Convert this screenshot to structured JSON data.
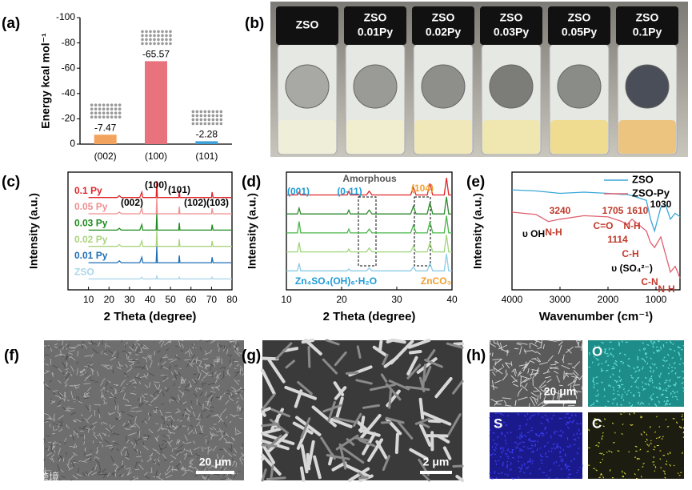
{
  "chart_data": [
    {
      "type": "bar",
      "ylabel": "Energy kcal mol⁻¹",
      "categories": [
        "(002)",
        "(100)",
        "(101)"
      ],
      "values": [
        -7.47,
        -65.57,
        -2.28
      ],
      "colors": [
        "#f2a45f",
        "#e9737d",
        "#3f9fd8"
      ],
      "ylim": [
        0,
        -100
      ],
      "yticks": [
        0,
        -20,
        -40,
        -60,
        -80,
        -100
      ]
    },
    {
      "type": "line",
      "xlabel": "2 Theta (degree)",
      "ylabel": "Intensity (a.u.)",
      "x": [
        10,
        24,
        25,
        26,
        35,
        36,
        36.5,
        37,
        43,
        43.3,
        43.6,
        54,
        54.3,
        54.6,
        70,
        70.3,
        70.8,
        80
      ],
      "series": [
        {
          "name": "0.1 Py",
          "color": "#e0262a",
          "values": [
            5.1,
            5.1,
            5.2,
            5.1,
            5.1,
            5.4,
            5.1,
            5.1,
            5.1,
            6.0,
            5.1,
            5.1,
            5.5,
            5.1,
            5.1,
            5.4,
            5.1,
            5.1
          ]
        },
        {
          "name": "0.05 Py",
          "color": "#f08f8f",
          "values": [
            4.2,
            4.2,
            4.3,
            4.2,
            4.2,
            4.5,
            4.2,
            4.2,
            4.2,
            5.1,
            4.2,
            4.2,
            4.6,
            4.2,
            4.2,
            4.5,
            4.2,
            4.2
          ]
        },
        {
          "name": "0.03 Py",
          "color": "#1e8c1e",
          "values": [
            3.3,
            3.3,
            3.4,
            3.3,
            3.3,
            3.6,
            3.3,
            3.3,
            3.3,
            4.2,
            3.3,
            3.3,
            3.7,
            3.3,
            3.3,
            3.6,
            3.3,
            3.3
          ]
        },
        {
          "name": "0.02 Py",
          "color": "#a9d47c",
          "values": [
            2.4,
            2.4,
            2.5,
            2.4,
            2.4,
            2.7,
            2.4,
            2.4,
            2.4,
            3.3,
            2.4,
            2.4,
            2.8,
            2.4,
            2.4,
            2.7,
            2.4,
            2.4
          ]
        },
        {
          "name": "0.01 Py",
          "color": "#1f6fb5",
          "values": [
            1.5,
            1.5,
            1.6,
            1.5,
            1.5,
            1.8,
            1.5,
            1.5,
            1.5,
            2.4,
            1.5,
            1.5,
            1.9,
            1.5,
            1.5,
            1.8,
            1.5,
            1.5
          ]
        },
        {
          "name": "ZSO",
          "color": "#a8d6ea",
          "values": [
            0.6,
            0.6,
            0.6,
            0.6,
            0.6,
            0.7,
            0.6,
            0.6,
            0.6,
            0.8,
            0.6,
            0.6,
            0.7,
            0.6,
            0.6,
            0.7,
            0.6,
            0.6
          ]
        }
      ],
      "xlim": [
        0,
        80
      ],
      "xticks": [
        10,
        20,
        30,
        40,
        50,
        60,
        70,
        80
      ],
      "ylim": [
        0,
        6.5
      ],
      "annotations": [
        {
          "text": "(002)",
          "color": "#000"
        },
        {
          "text": "(100)",
          "color": "#000"
        },
        {
          "text": "(101)",
          "color": "#000"
        },
        {
          "text": "(102)",
          "color": "#000"
        },
        {
          "text": "(103)",
          "color": "#000"
        }
      ]
    },
    {
      "type": "line",
      "xlabel": "2 Theta (degree)",
      "ylabel": "Intensity (a.u.)",
      "x": [
        10,
        12,
        12.3,
        12.6,
        20,
        21,
        21.3,
        21.6,
        24.5,
        25,
        25.5,
        32.5,
        33,
        33.5,
        35.5,
        36,
        36.5,
        38.6,
        39,
        39.4,
        40
      ],
      "series": [
        {
          "color": "#e0262a",
          "values": [
            5,
            5,
            5.15,
            5,
            5,
            5,
            5.2,
            5,
            5,
            5.2,
            5,
            5,
            5.4,
            5,
            5,
            5.6,
            5,
            5,
            5.9,
            5,
            5
          ]
        },
        {
          "color": "#2e8b2e",
          "values": [
            4,
            4,
            4.3,
            4,
            4,
            4,
            4.2,
            4,
            4,
            4.2,
            4,
            4,
            4.4,
            4,
            4,
            4.6,
            4,
            4,
            4.9,
            4,
            4
          ]
        },
        {
          "color": "#49b649",
          "values": [
            3,
            3,
            3.6,
            3,
            3,
            3,
            3.2,
            3,
            3,
            3.2,
            3,
            3,
            3.4,
            3,
            3,
            3.6,
            3,
            3,
            3.9,
            3,
            3
          ]
        },
        {
          "color": "#9ed67a",
          "values": [
            2,
            2,
            2.5,
            2,
            2,
            2,
            2.15,
            2,
            2,
            2.2,
            2,
            2,
            2.3,
            2,
            2,
            2.5,
            2,
            2,
            2.9,
            2,
            2
          ]
        },
        {
          "color": "#8ccde8",
          "values": [
            1,
            1,
            1.4,
            1,
            1,
            1,
            1.1,
            1,
            1,
            1.15,
            1,
            1,
            1.2,
            1,
            1,
            1.4,
            1,
            1,
            1.9,
            1,
            1
          ]
        }
      ],
      "xlim": [
        10,
        40
      ],
      "xticks": [
        10,
        20,
        30,
        40
      ],
      "ylim": [
        0,
        6.2
      ],
      "annotations": [
        {
          "text": "(001)",
          "color": "#1e9bd7"
        },
        {
          "text": "(0-11)",
          "color": "#1e9bd7"
        },
        {
          "text": "Amorphous",
          "color": "#555"
        },
        {
          "text": "(104)",
          "color": "#f0a030"
        },
        {
          "text": "Zn₄SO₄(OH)₆·H₂O",
          "color": "#1e9bd7"
        },
        {
          "text": "ZnCO₃",
          "color": "#f0a030"
        }
      ]
    },
    {
      "type": "line",
      "xlabel": "Wavenumber (cm⁻¹)",
      "ylabel": "Intensity (a.u.)",
      "x": [
        4000,
        3500,
        3240,
        3000,
        2500,
        2000,
        1705,
        1610,
        1500,
        1200,
        1114,
        1030,
        900,
        800,
        700,
        600,
        500
      ],
      "series": [
        {
          "name": "ZSO",
          "color": "#3aa7d8",
          "values": [
            0.85,
            0.84,
            0.83,
            0.82,
            0.83,
            0.82,
            0.81,
            0.81,
            0.8,
            0.76,
            0.6,
            0.5,
            0.7,
            0.72,
            0.6,
            0.65,
            0.62
          ]
        },
        {
          "name": "ZSO-Py",
          "color": "#e06070",
          "values": [
            0.66,
            0.64,
            0.58,
            0.6,
            0.63,
            0.62,
            0.58,
            0.55,
            0.6,
            0.5,
            0.4,
            0.36,
            0.45,
            0.3,
            0.15,
            0.2,
            0.1
          ]
        }
      ],
      "xlim": [
        4000,
        500
      ],
      "xticks": [
        4000,
        3000,
        2000,
        1000
      ],
      "ylim": [
        0,
        1
      ],
      "legend": "upper right",
      "annotations": [
        {
          "text": "υ OH",
          "color": "#000"
        },
        {
          "text": "N-H",
          "color": "#c0392b"
        },
        {
          "text": "3240",
          "color": "#c0392b"
        },
        {
          "text": "1705",
          "color": "#c0392b"
        },
        {
          "text": "1610",
          "color": "#c0392b"
        },
        {
          "text": "1030",
          "color": "#000"
        },
        {
          "text": "C=O",
          "color": "#c0392b"
        },
        {
          "text": "N-H",
          "color": "#c0392b"
        },
        {
          "text": "1114",
          "color": "#c0392b"
        },
        {
          "text": "C-H",
          "color": "#c0392b"
        },
        {
          "text": "υ (SO₄²⁻)",
          "color": "#000"
        },
        {
          "text": "C-N",
          "color": "#c0392b"
        },
        {
          "text": "N-H",
          "color": "#c0392b"
        }
      ]
    }
  ],
  "panels": [
    "(a)",
    "(b)",
    "(c)",
    "(d)",
    "(e)",
    "(f)",
    "(g)",
    "(h)"
  ],
  "photo": {
    "vials": [
      {
        "lines": [
          "ZSO"
        ],
        "color": "#efeed8"
      },
      {
        "lines": [
          "ZSO",
          "0.01Py"
        ],
        "color": "#f1eed0"
      },
      {
        "lines": [
          "ZSO",
          "0.02Py"
        ],
        "color": "#f0e8b8"
      },
      {
        "lines": [
          "ZSO",
          "0.03Py"
        ],
        "color": "#efe6b0"
      },
      {
        "lines": [
          "ZSO",
          "0.05Py"
        ],
        "color": "#efdc90"
      },
      {
        "lines": [
          "ZSO",
          "0.1Py"
        ],
        "color": "#ecc480"
      }
    ]
  },
  "sem": {
    "f_scale": "20 μm",
    "g_scale": "2 μm",
    "h_scale": "20 μm",
    "maps": [
      "O",
      "S",
      "C"
    ]
  },
  "watermark": "大数跨境"
}
